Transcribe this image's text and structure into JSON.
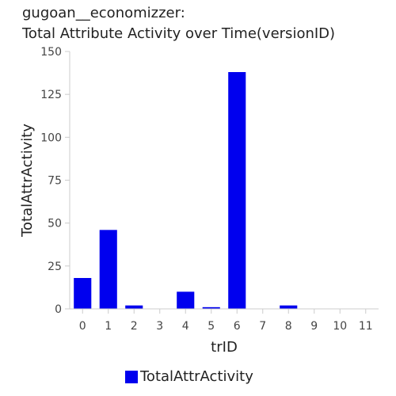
{
  "chart_data": {
    "type": "bar",
    "title_lines": [
      "gugoan__economizzer:",
      "Total Attribute Activity over Time(versionID)"
    ],
    "xlabel": "trID",
    "ylabel": "TotalAttrActivity",
    "categories": [
      "0",
      "1",
      "2",
      "3",
      "4",
      "5",
      "6",
      "7",
      "8",
      "9",
      "10",
      "11"
    ],
    "series": [
      {
        "name": "TotalAttrActivity",
        "color": "#0000ee",
        "values": [
          18,
          46,
          2,
          0,
          10,
          1,
          138,
          0,
          2,
          0,
          0,
          0
        ]
      }
    ],
    "ylim": [
      0,
      150
    ],
    "yticks": [
      0,
      25,
      50,
      75,
      100,
      125,
      150
    ],
    "grid": false,
    "legend_position": "bottom"
  }
}
